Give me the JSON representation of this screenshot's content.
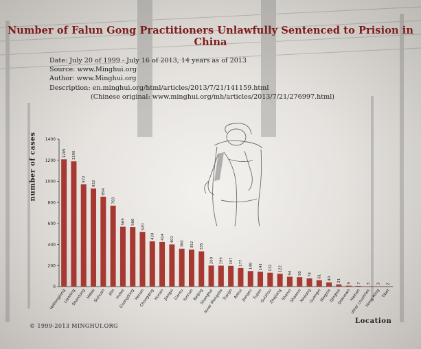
{
  "header": {
    "title": "Number of Falun Gong Practitioners Unlawfully Sentenced to Prision in China"
  },
  "info": {
    "date": "Date: July 20 of 1999 - July 16 of 2013, 14 years as of 2013",
    "source": "Source: www.Minghui.org",
    "author": "Author: www.Minghui.org",
    "description": "Description: en.minghui.org/html/articles/2013/7/21/141159.html",
    "chinese": "(Chinese original: www.minghui.org/mh/articles/2013/7/21/276997.html)"
  },
  "footer": {
    "copyright": "© 1999-2013 MINGHUI.ORG"
  },
  "colors": {
    "bar": "#a63a32",
    "title": "#7e1b1b",
    "axis": "#333333"
  },
  "chart_data": {
    "type": "bar",
    "xlabel": "Location",
    "ylabel": "number of cases",
    "ylim": [
      0,
      1400
    ],
    "yticks": [
      0,
      200,
      400,
      600,
      800,
      1000,
      1200,
      1400
    ],
    "categories": [
      "Heilongjiang",
      "Liaoning",
      "Shandong",
      "Hebei",
      "Sichuan",
      "Jilin",
      "Hubei",
      "Guangdong",
      "Henan",
      "Chongqing",
      "Hunan",
      "Jiangxi",
      "Gansu",
      "Yunnan",
      "Beijing",
      "Shanghai",
      "Inner Mongolia",
      "Tianjin",
      "Anhui",
      "Jiangsu",
      "Fujian",
      "Guizhou",
      "Zhejiang",
      "Shanxi",
      "Shaanxi",
      "Xinjiang",
      "Guangxi",
      "Ningxia",
      "Qinghai",
      "Unknown",
      "Hainan",
      "other countries",
      "Hong Kong",
      "Tibet"
    ],
    "values": [
      1209,
      1190,
      972,
      932,
      854,
      769,
      569,
      566,
      520,
      430,
      424,
      401,
      360,
      352,
      335,
      200,
      199,
      197,
      177,
      148,
      141,
      132,
      122,
      94,
      90,
      78,
      61,
      40,
      21,
      9,
      7,
      3,
      3,
      2
    ],
    "grid": false,
    "legend": "none"
  }
}
